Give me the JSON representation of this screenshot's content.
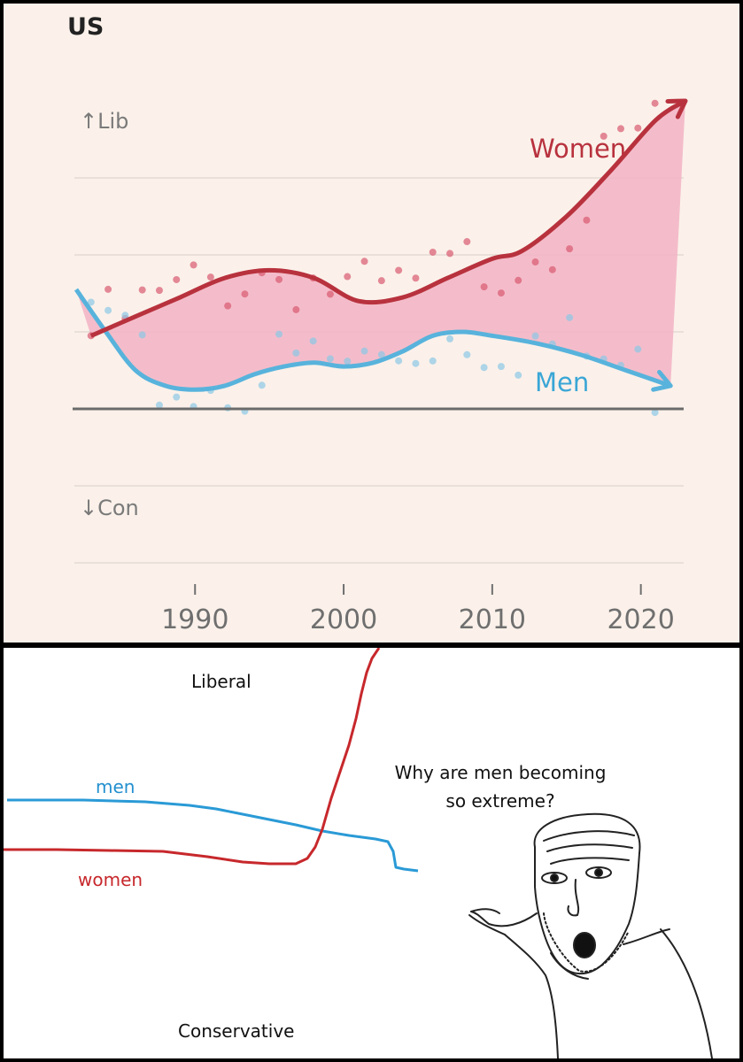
{
  "top_chart": {
    "title": "US",
    "axis_top_label": "↑Lib",
    "axis_bottom_label": "↓Con",
    "x_tick_labels": [
      "1990",
      "2000",
      "2010",
      "2020"
    ],
    "series_labels": {
      "women": "Women",
      "men": "Men"
    },
    "colors": {
      "women": "#b8323e",
      "men": "#58b3dc",
      "fill": "#f2b3c4",
      "grid": "#e3dad3",
      "baseline": "#6b6b6b"
    }
  },
  "chart_data": [
    {
      "type": "line",
      "title": "US",
      "ylabel_top": "↑Lib",
      "ylabel_bottom": "↓Con",
      "xlim": [
        1982,
        2023
      ],
      "ylim": [
        -3,
        3.7
      ],
      "x_ticks": [
        1990,
        2000,
        2010,
        2020
      ],
      "grid": true,
      "series": [
        {
          "name": "Women",
          "x": [
            1983,
            1986,
            1989,
            1992,
            1995,
            1998,
            2001,
            2004,
            2007,
            2010,
            2012,
            2015,
            2018,
            2021,
            2023
          ],
          "values": [
            0.95,
            1.2,
            1.45,
            1.7,
            1.8,
            1.7,
            1.4,
            1.45,
            1.7,
            1.95,
            2.05,
            2.5,
            3.1,
            3.75,
            4.0
          ]
        },
        {
          "name": "Men",
          "x": [
            1982,
            1984,
            1986,
            1988,
            1990,
            1992,
            1994,
            1996,
            1998,
            2000,
            2002,
            2004,
            2006,
            2008,
            2010,
            2013,
            2016,
            2019,
            2022
          ],
          "values": [
            1.55,
            1.0,
            0.5,
            0.3,
            0.25,
            0.3,
            0.45,
            0.55,
            0.6,
            0.55,
            0.6,
            0.75,
            0.95,
            1.0,
            0.95,
            0.85,
            0.7,
            0.5,
            0.3
          ]
        }
      ]
    }
  ],
  "comic": {
    "label_liberal": "Liberal",
    "label_conservative": "Conservative",
    "label_men": "men",
    "label_women": "women",
    "speech_line1": "Why are men becoming",
    "speech_line2": "so extreme?",
    "colors": {
      "men": "#2a9ad6",
      "women": "#c7282c"
    }
  }
}
